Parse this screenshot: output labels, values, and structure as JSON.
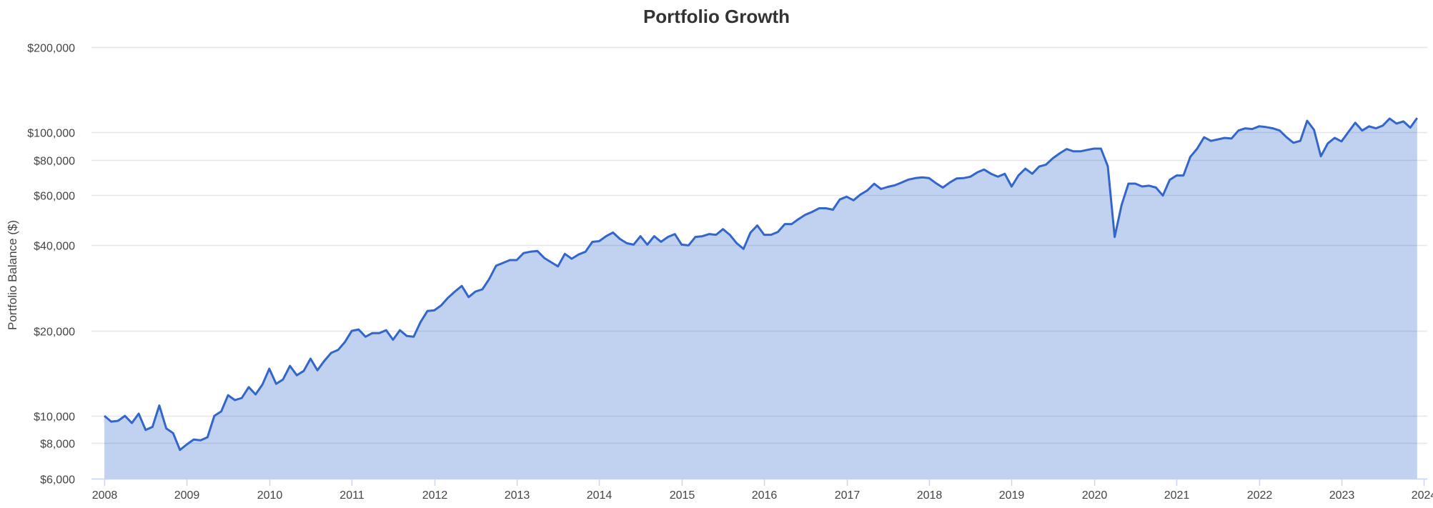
{
  "chart": {
    "title": "Portfolio Growth",
    "ylabel": "Portfolio Balance ($)",
    "line_color": "#3366cc",
    "fill_color": "#3366cc",
    "fill_opacity": 0.3,
    "grid_color": "#e6e6e6"
  },
  "chart_data": {
    "type": "area",
    "title": "Portfolio Growth",
    "xlabel": "",
    "ylabel": "Portfolio Balance ($)",
    "yscale": "log",
    "ylim": [
      6000,
      200000
    ],
    "xlim": [
      "2008-01",
      "2024-01"
    ],
    "grid": true,
    "legend": null,
    "y_ticks": [
      {
        "value": 200000,
        "label": "$200,000"
      },
      {
        "value": 100000,
        "label": "$100,000"
      },
      {
        "value": 80000,
        "label": "$80,000"
      },
      {
        "value": 60000,
        "label": "$60,000"
      },
      {
        "value": 40000,
        "label": "$40,000"
      },
      {
        "value": 20000,
        "label": "$20,000"
      },
      {
        "value": 10000,
        "label": "$10,000"
      },
      {
        "value": 8000,
        "label": "$8,000"
      },
      {
        "value": 6000,
        "label": "$6,000"
      }
    ],
    "x_ticks": [
      "2008",
      "2009",
      "2010",
      "2011",
      "2012",
      "2013",
      "2014",
      "2015",
      "2016",
      "2017",
      "2018",
      "2019",
      "2020",
      "2021",
      "2022",
      "2023",
      "2024"
    ],
    "start": "2008-01",
    "frequency": "monthly",
    "series": [
      {
        "name": "Portfolio Balance",
        "values": [
          10000,
          9540,
          9600,
          10000,
          9430,
          10180,
          8920,
          9140,
          10880,
          9030,
          8690,
          7580,
          7930,
          8250,
          8200,
          8400,
          10000,
          10360,
          11830,
          11360,
          11560,
          12630,
          11900,
          12900,
          14660,
          12970,
          13440,
          15010,
          13910,
          14400,
          15910,
          14480,
          15630,
          16680,
          17080,
          18230,
          19940,
          20180,
          19020,
          19590,
          19590,
          20060,
          18560,
          20060,
          19140,
          19020,
          21420,
          23440,
          23560,
          24520,
          26100,
          27470,
          28730,
          26250,
          27470,
          27950,
          30420,
          33870,
          34650,
          35450,
          35450,
          37520,
          37950,
          38170,
          36060,
          34840,
          33680,
          37300,
          35850,
          37090,
          37950,
          41120,
          41360,
          43050,
          44350,
          42100,
          40650,
          40200,
          43050,
          40200,
          43050,
          41130,
          42800,
          43800,
          40200,
          39970,
          42800,
          43050,
          43800,
          43550,
          45580,
          43550,
          40650,
          38830,
          44310,
          46950,
          43550,
          43550,
          44570,
          47510,
          47510,
          49480,
          51260,
          52450,
          54020,
          54020,
          53380,
          58000,
          59350,
          57640,
          60380,
          62460,
          65900,
          63170,
          64290,
          65080,
          66580,
          68190,
          69000,
          69400,
          69000,
          66200,
          63900,
          66600,
          68800,
          69000,
          69800,
          72300,
          74000,
          71500,
          69800,
          71500,
          64460,
          70500,
          74500,
          71500,
          75800,
          77000,
          81100,
          84400,
          87400,
          85800,
          85800,
          86800,
          87700,
          87700,
          76000,
          42800,
          55500,
          66000,
          66000,
          64460,
          64900,
          63900,
          59900,
          68000,
          70500,
          70500,
          82000,
          87700,
          96200,
          93400,
          94500,
          95700,
          95200,
          101600,
          103400,
          102800,
          105100,
          104500,
          103400,
          101600,
          96200,
          92000,
          93400,
          110000,
          102200,
          82400,
          91500,
          95700,
          93000,
          100400,
          108200,
          101600,
          105100,
          103400,
          105700,
          112000,
          107500,
          109400,
          104000,
          112500
        ]
      }
    ]
  }
}
